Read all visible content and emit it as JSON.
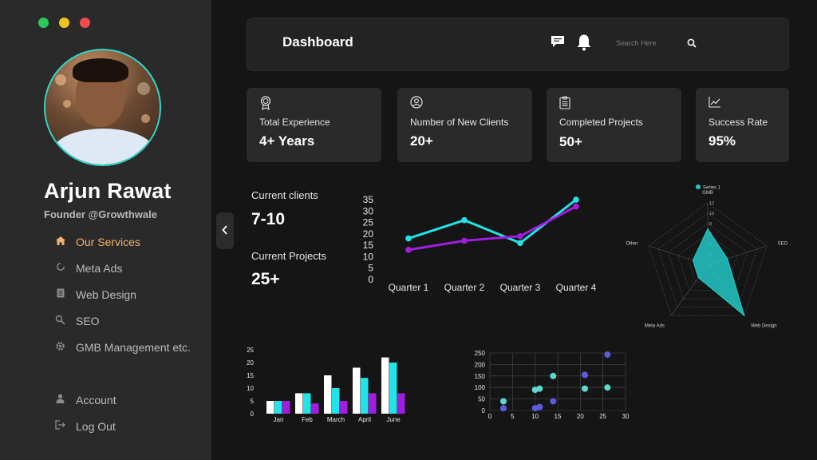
{
  "window": {
    "controls": [
      "close",
      "minimize",
      "maximize"
    ],
    "control_colors": [
      "#2ec95a",
      "#f0c420",
      "#f24b4b"
    ]
  },
  "profile": {
    "name": "Arjun Rawat",
    "role": "Founder @Growthwale"
  },
  "nav": {
    "items": [
      {
        "label": "Our Services",
        "icon": "home-icon",
        "active": true
      },
      {
        "label": "Meta Ads",
        "icon": "refresh-icon",
        "active": false
      },
      {
        "label": "Web Design",
        "icon": "document-icon",
        "active": false
      },
      {
        "label": "SEO",
        "icon": "search-icon",
        "active": false
      },
      {
        "label": "GMB Management etc.",
        "icon": "gear-icon",
        "active": false
      }
    ],
    "bottom": [
      {
        "label": "Account",
        "icon": "user-icon"
      },
      {
        "label": "Log Out",
        "icon": "logout-icon"
      }
    ]
  },
  "header": {
    "title": "Dashboard",
    "search_placeholder": "Search Here"
  },
  "stats": [
    {
      "label": "Total Experience",
      "value": "4+ Years",
      "icon": "award-icon"
    },
    {
      "label": "Number of New Clients",
      "value": "20+",
      "icon": "user-circle-icon"
    },
    {
      "label": "Completed Projects",
      "value": "50+",
      "icon": "clipboard-icon"
    },
    {
      "label": "Success Rate",
      "value": "95%",
      "icon": "trend-icon"
    }
  ],
  "clients": {
    "current_clients_label": "Current clients",
    "current_clients_value": "7-10",
    "current_projects_label": "Current Projects",
    "current_projects_value": "25+"
  },
  "colors": {
    "accent": "#f4b06b",
    "cyan": "#22e4e8",
    "purple": "#a11ee0",
    "white": "#ffffff",
    "blue": "#5a5be0",
    "teal": "#5fd8d0"
  },
  "chart_data": [
    {
      "type": "line",
      "categories": [
        "Quarter 1",
        "Quarter 2",
        "Quarter 3",
        "Quarter 4"
      ],
      "yticks": [
        0,
        5,
        10,
        15,
        20,
        25,
        30,
        35
      ],
      "ylim": [
        0,
        35
      ],
      "series": [
        {
          "values": [
            18,
            26,
            16,
            35
          ],
          "color": "#22e4e8"
        },
        {
          "values": [
            13,
            17,
            19,
            32
          ],
          "color": "#a11ee0"
        }
      ]
    },
    {
      "type": "radar",
      "axes": [
        "GMB",
        "SEO",
        "Web Design",
        "Meta Ads",
        "Other"
      ],
      "rticks": [
        0,
        2,
        4,
        6,
        8,
        10,
        12
      ],
      "rmax": 12,
      "series": [
        {
          "name": "Series 1",
          "values": [
            7,
            4,
            12,
            3,
            3
          ],
          "color": "#22c7c4"
        }
      ],
      "legend": "top"
    },
    {
      "type": "bar",
      "categories": [
        "Jan",
        "Feb",
        "March",
        "April",
        "June"
      ],
      "yticks": [
        0,
        5,
        10,
        15,
        20,
        25
      ],
      "ylim": [
        0,
        25
      ],
      "series": [
        {
          "values": [
            5,
            8,
            15,
            18,
            22
          ],
          "color": "#ffffff"
        },
        {
          "values": [
            5,
            8,
            10,
            14,
            20
          ],
          "color": "#22e4e8"
        },
        {
          "values": [
            5,
            4,
            5,
            8,
            8
          ],
          "color": "#a11ee0"
        }
      ]
    },
    {
      "type": "scatter",
      "xticks": [
        0,
        5,
        10,
        15,
        20,
        25,
        30
      ],
      "yticks": [
        0,
        50,
        100,
        150,
        200,
        250
      ],
      "xlim": [
        0,
        30
      ],
      "ylim": [
        0,
        250
      ],
      "grid": true,
      "series": [
        {
          "color": "#5a5be0",
          "points": [
            [
              3,
              10
            ],
            [
              10,
              10
            ],
            [
              11,
              15
            ],
            [
              14,
              40
            ],
            [
              21,
              155
            ],
            [
              26,
              243
            ]
          ]
        },
        {
          "color": "#5fd8d0",
          "points": [
            [
              3,
              40
            ],
            [
              10,
              90
            ],
            [
              11,
              95
            ],
            [
              14,
              150
            ],
            [
              21,
              95
            ],
            [
              26,
              100
            ]
          ]
        }
      ]
    }
  ]
}
